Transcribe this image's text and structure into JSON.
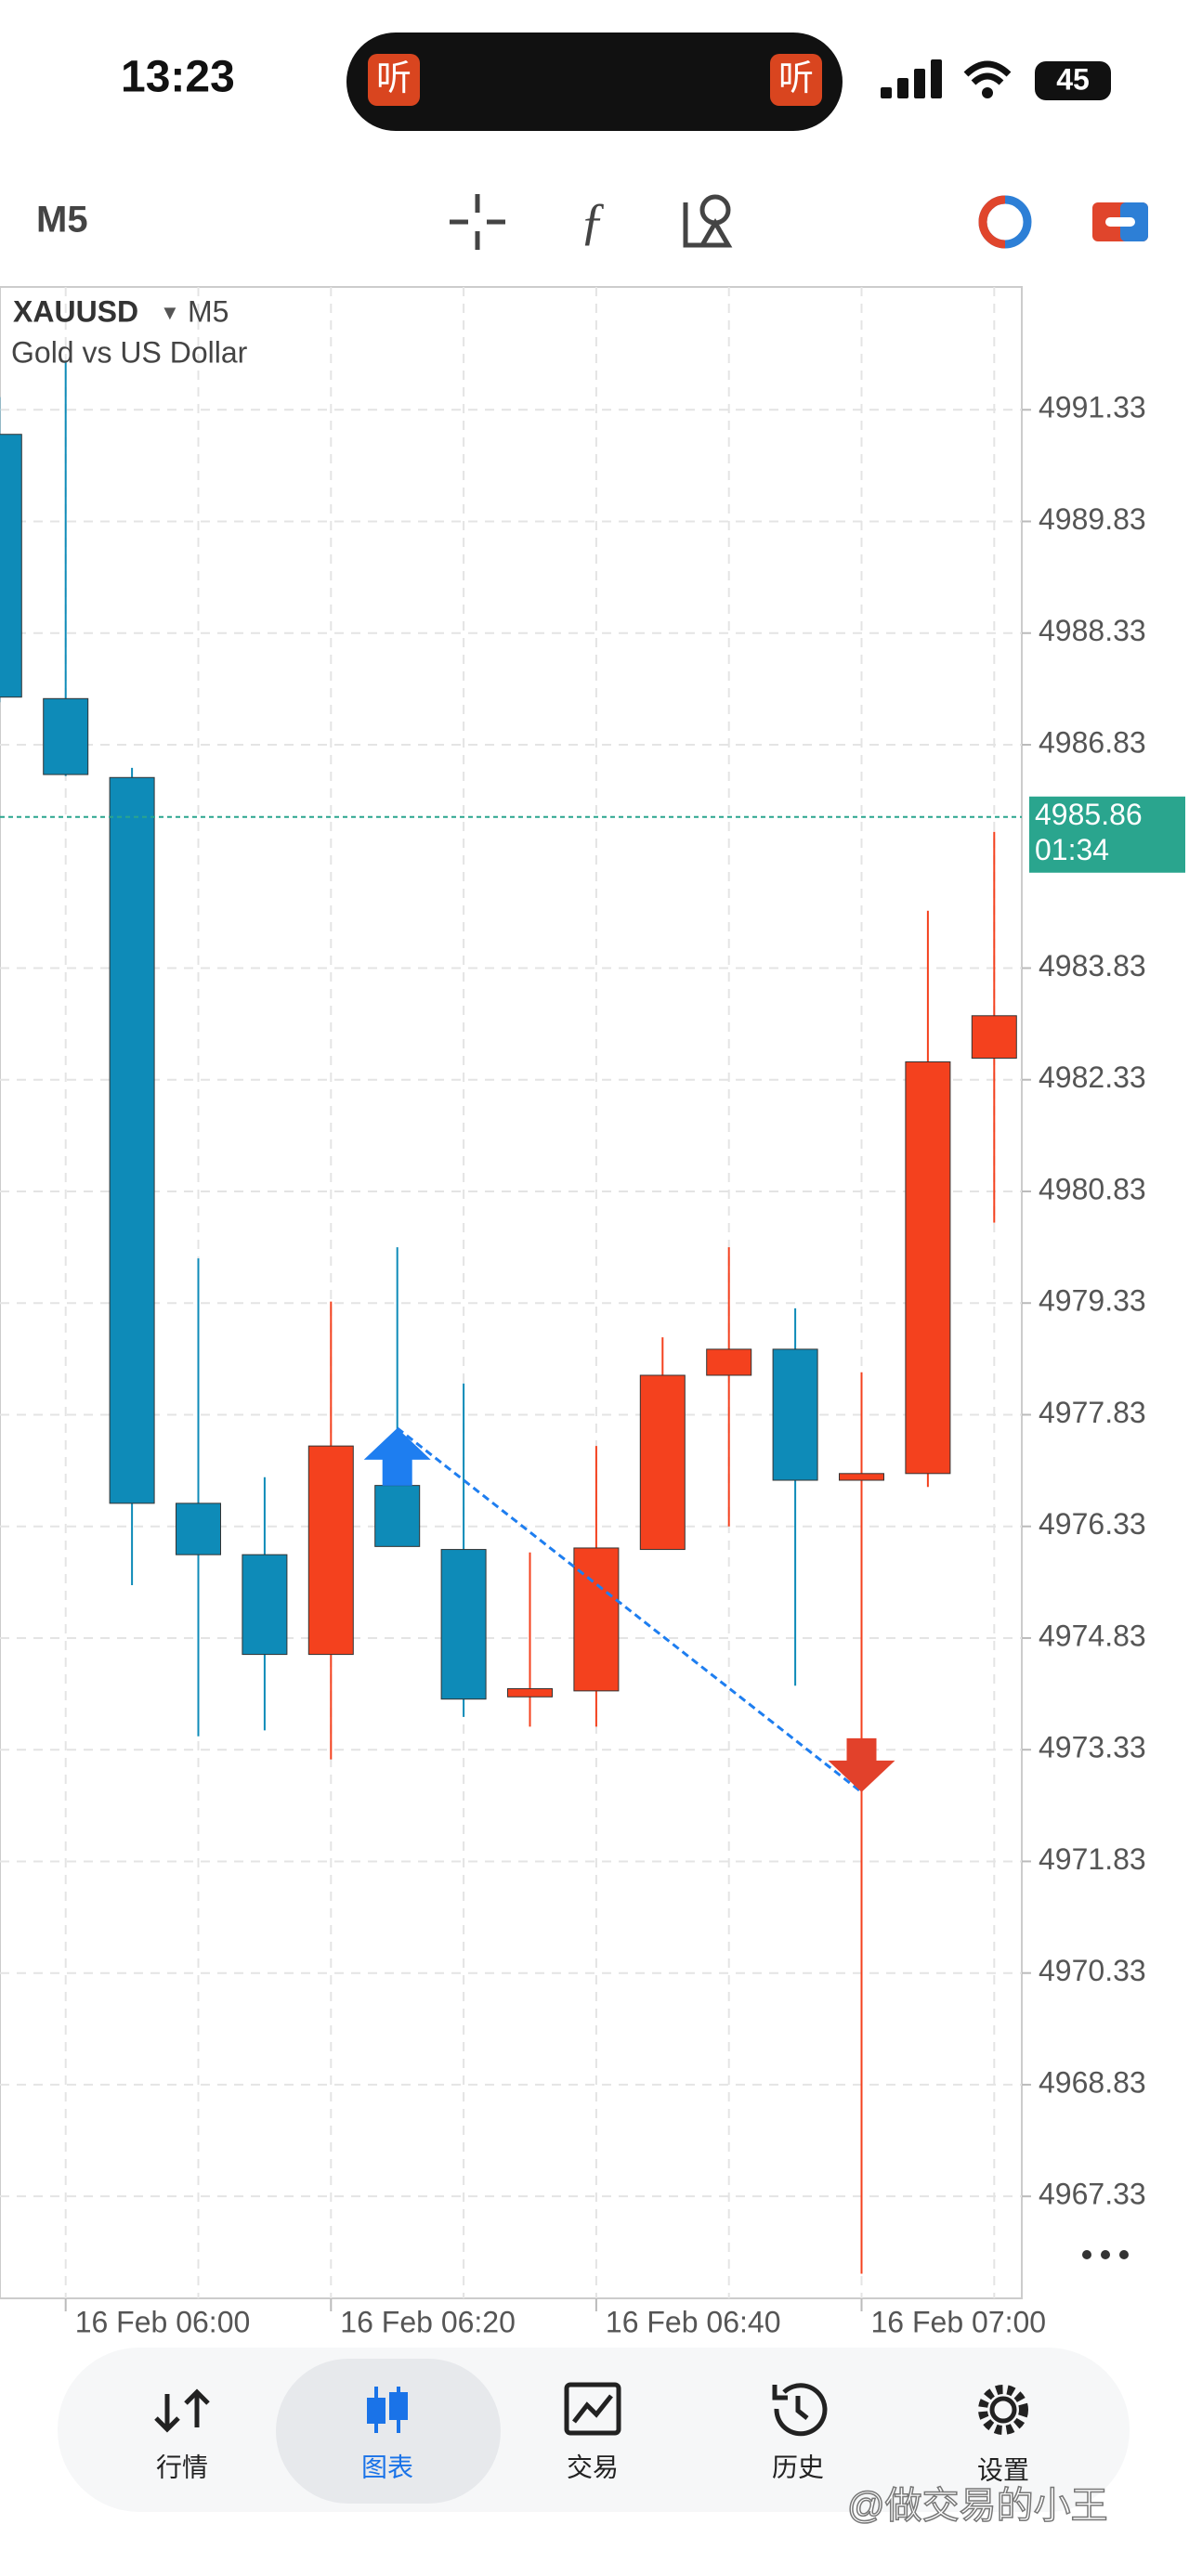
{
  "status_bar": {
    "time": "13:23",
    "battery": "45",
    "island_icons": [
      "听",
      "听"
    ]
  },
  "toolbar": {
    "timeframe": "M5"
  },
  "chart_header": {
    "symbol": "XAUUSD",
    "timeframe": "M5",
    "description": "Gold vs US Dollar"
  },
  "chart_data": {
    "type": "candlestick",
    "categories": [
      null,
      "16 Feb 06:00",
      null,
      null,
      null,
      "16 Feb 06:20",
      null,
      null,
      null,
      "16 Feb 06:40",
      null,
      null,
      null,
      "16 Feb 07:00",
      null,
      null
    ],
    "open": [
      4991.0,
      4987.45,
      4986.39,
      4976.64,
      4975.95,
      4974.61,
      4976.88,
      4976.02,
      4974.04,
      4974.12,
      4976.02,
      4978.36,
      4978.71,
      4976.95,
      4977.04,
      4982.62
    ],
    "high": [
      4991.5,
      4991.99,
      4986.52,
      4979.93,
      4976.99,
      4979.35,
      4980.08,
      4978.25,
      4975.98,
      4977.41,
      4978.87,
      4980.08,
      4979.26,
      4978.4,
      4984.6,
      4985.66
    ],
    "low": [
      4987.4,
      4986.41,
      4975.54,
      4973.51,
      4973.59,
      4973.2,
      4976.06,
      4973.77,
      4973.64,
      4973.64,
      4976.02,
      4976.33,
      4974.19,
      4966.29,
      4976.86,
      4980.41
    ],
    "close": [
      4987.47,
      4986.43,
      4976.64,
      4975.95,
      4974.61,
      4977.41,
      4976.06,
      4974.01,
      4974.15,
      4976.04,
      4978.36,
      4978.71,
      4976.95,
      4977.04,
      4982.57,
      4983.19
    ],
    "up_color": "#f4411e",
    "down_color": "#0e8bb8",
    "ylim": [
      4965.96,
      4992.98
    ],
    "yticks": [
      4991.33,
      4989.83,
      4988.33,
      4986.83,
      4983.83,
      4982.33,
      4980.83,
      4979.33,
      4977.83,
      4976.33,
      4974.83,
      4973.33,
      4971.83,
      4970.33,
      4968.83,
      4967.33
    ],
    "grid": true,
    "last_price": 4985.86,
    "countdown": "01:34",
    "price_color": "#2aa58e",
    "trade_open": 4977.65,
    "trade_close": 4972.76,
    "buy_color": "#1e7ef0",
    "sell_color": "#e2412b"
  },
  "nav": {
    "tabs": [
      "行情",
      "图表",
      "交易",
      "历史",
      "设置"
    ]
  },
  "watermark": "@做交易的小王"
}
